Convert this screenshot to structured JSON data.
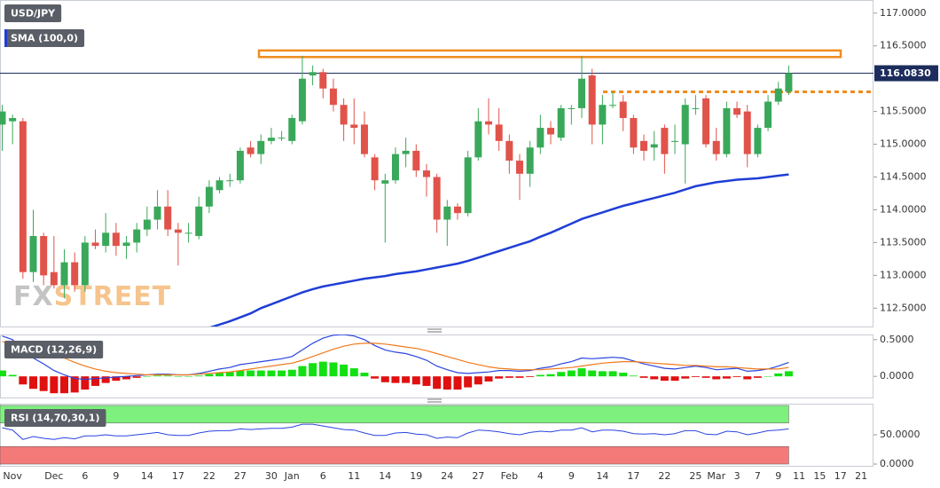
{
  "chart_data": [
    {
      "type": "candlestick",
      "symbol": "USD/JPY",
      "categories": [
        null,
        "Nov",
        null,
        null,
        null,
        "Dec",
        null,
        null,
        "6",
        null,
        null,
        "9",
        null,
        null,
        "14",
        null,
        null,
        "17",
        null,
        null,
        "22",
        null,
        null,
        "27",
        null,
        null,
        "30",
        null,
        "Jan",
        null,
        null,
        "6",
        null,
        null,
        "11",
        null,
        null,
        "14",
        null,
        null,
        "19",
        null,
        null,
        "24",
        null,
        null,
        "27",
        null,
        null,
        "Feb",
        null,
        null,
        "4",
        null,
        null,
        "9",
        null,
        null,
        "14",
        null,
        null,
        "17",
        null,
        null,
        "22",
        null,
        null,
        "25",
        null,
        "Mar",
        null,
        "3",
        null,
        "7",
        null,
        "9",
        null,
        "11",
        null,
        "15",
        null,
        "17",
        null,
        "21"
      ],
      "open": [
        115.3,
        115.35,
        115.35,
        113.05,
        113.6,
        113.05,
        112.85,
        113.2,
        112.85,
        113.5,
        113.45,
        113.65,
        113.45,
        113.5,
        113.7,
        113.85,
        114.05,
        113.7,
        113.65,
        113.6,
        114.05,
        114.3,
        114.45,
        114.45,
        114.95,
        114.85,
        115.05,
        115.1,
        115.05,
        115.35,
        116.05,
        116.1,
        115.85,
        115.6,
        115.3,
        115.3,
        114.8,
        114.4,
        114.45,
        114.85,
        114.9,
        114.6,
        114.5,
        113.85,
        114.05,
        113.95,
        114.8,
        115.35,
        115.3,
        115.05,
        114.75,
        114.55,
        114.95,
        115.25,
        115.1,
        115.55,
        115.55,
        116.05,
        115.3,
        115.6,
        115.65,
        115.4,
        115.05,
        114.95,
        115.25,
        115.05,
        115.0,
        115.55,
        115.7,
        115.05,
        114.85,
        115.55,
        115.5,
        114.85,
        115.25,
        115.65,
        115.8,
        null,
        null,
        null,
        null,
        null,
        null,
        null
      ],
      "high": [
        115.6,
        115.45,
        115.4,
        114.0,
        113.65,
        113.6,
        113.4,
        113.35,
        113.6,
        113.7,
        113.95,
        113.8,
        113.6,
        113.8,
        114.05,
        114.3,
        114.3,
        113.8,
        113.8,
        114.2,
        114.45,
        114.5,
        114.55,
        114.95,
        115.05,
        115.15,
        115.25,
        115.2,
        115.45,
        116.35,
        116.2,
        116.15,
        116.0,
        115.7,
        115.7,
        115.5,
        114.85,
        114.55,
        114.95,
        115.1,
        115.0,
        114.7,
        114.55,
        114.15,
        114.1,
        114.9,
        115.55,
        115.7,
        115.55,
        115.15,
        114.85,
        115.05,
        115.45,
        115.35,
        115.6,
        115.6,
        116.35,
        116.15,
        115.75,
        115.8,
        115.75,
        115.45,
        115.15,
        115.2,
        115.3,
        115.3,
        115.7,
        115.75,
        115.75,
        115.25,
        115.65,
        115.65,
        115.6,
        115.3,
        115.75,
        115.95,
        116.2,
        null,
        null,
        null,
        null,
        null,
        null,
        null
      ],
      "low": [
        114.9,
        115.0,
        112.95,
        112.9,
        112.85,
        112.8,
        112.65,
        112.75,
        112.75,
        113.4,
        113.35,
        113.3,
        113.25,
        113.35,
        113.6,
        113.7,
        113.6,
        113.15,
        113.5,
        113.55,
        113.95,
        114.25,
        114.35,
        114.4,
        114.8,
        114.7,
        115.0,
        115.05,
        115.0,
        115.3,
        115.9,
        115.7,
        115.5,
        115.05,
        115.0,
        114.8,
        114.3,
        113.5,
        114.4,
        114.65,
        114.5,
        114.2,
        113.65,
        113.45,
        113.85,
        113.9,
        114.75,
        115.15,
        114.9,
        114.55,
        114.15,
        114.35,
        114.85,
        115.0,
        115.05,
        115.3,
        115.4,
        115.0,
        115.0,
        115.55,
        115.2,
        114.85,
        114.75,
        114.75,
        114.55,
        114.85,
        114.4,
        115.45,
        114.95,
        114.75,
        114.8,
        115.4,
        114.65,
        114.8,
        115.2,
        115.6,
        115.75,
        null,
        null,
        null,
        null,
        null,
        null,
        null
      ],
      "close": [
        115.5,
        115.4,
        113.05,
        113.6,
        113.0,
        112.85,
        113.2,
        112.85,
        113.5,
        113.45,
        113.65,
        113.45,
        113.5,
        113.7,
        113.85,
        114.05,
        113.7,
        113.65,
        113.65,
        114.05,
        114.35,
        114.45,
        114.45,
        114.9,
        114.85,
        115.05,
        115.1,
        115.1,
        115.4,
        116.0,
        116.1,
        115.85,
        115.6,
        115.3,
        115.25,
        114.85,
        114.45,
        114.45,
        114.85,
        114.9,
        114.6,
        114.5,
        113.85,
        114.05,
        113.95,
        114.8,
        115.35,
        115.3,
        115.05,
        114.75,
        114.55,
        114.95,
        115.25,
        115.15,
        115.55,
        115.55,
        116.0,
        115.3,
        115.6,
        115.6,
        115.4,
        114.95,
        114.9,
        115.0,
        114.85,
        115.05,
        115.6,
        115.55,
        115.0,
        114.85,
        115.55,
        115.45,
        114.85,
        115.25,
        115.65,
        115.85,
        116.083,
        null,
        null,
        null,
        null,
        null,
        null,
        null
      ],
      "up_color": "#3aa85a",
      "down_color": "#e0534a",
      "series": [
        {
          "name": "SMA (100,0)",
          "color": "#1f3ed6",
          "values": [
            null,
            null,
            null,
            null,
            null,
            null,
            null,
            null,
            null,
            null,
            null,
            null,
            null,
            null,
            null,
            null,
            null,
            null,
            null,
            null,
            112.2,
            112.25,
            112.3,
            112.36,
            112.42,
            112.5,
            112.56,
            112.62,
            112.68,
            112.74,
            112.79,
            112.83,
            112.86,
            112.89,
            112.92,
            112.95,
            112.97,
            112.99,
            113.02,
            113.04,
            113.06,
            113.09,
            113.12,
            113.15,
            113.18,
            113.22,
            113.27,
            113.32,
            113.37,
            113.42,
            113.47,
            113.52,
            113.59,
            113.65,
            113.72,
            113.79,
            113.86,
            113.91,
            113.96,
            114.01,
            114.06,
            114.1,
            114.14,
            114.18,
            114.22,
            114.26,
            114.31,
            114.36,
            114.39,
            114.42,
            114.44,
            114.46,
            114.47,
            114.48,
            114.5,
            114.52,
            114.54,
            null,
            null,
            null,
            null,
            null,
            null,
            null
          ]
        }
      ],
      "last": {
        "value": 116.083,
        "label": "116.0830"
      },
      "resistance_zone": [
        116.33,
        116.43
      ],
      "support_level": 115.8,
      "level_color": "#f08c1e",
      "watermark": [
        "FX",
        "STREET"
      ],
      "ylim": [
        112.22,
        117.2
      ],
      "yticks": [
        {
          "value": 117,
          "label": "117.0000"
        },
        {
          "value": 116.5,
          "label": "116.5000"
        },
        {
          "value": 115.5,
          "label": "115.5000"
        },
        {
          "value": 115,
          "label": "115.0000"
        },
        {
          "value": 114.5,
          "label": "114.5000"
        },
        {
          "value": 114,
          "label": "114.0000"
        },
        {
          "value": 113.5,
          "label": "113.5000"
        },
        {
          "value": 113,
          "label": "113.0000"
        },
        {
          "value": 112.5,
          "label": "112.5000"
        }
      ]
    },
    {
      "type": "macd",
      "title": "MACD (12,26,9)",
      "series": [
        {
          "color": "#2a44e0",
          "values": [
            0.55,
            0.5,
            0.35,
            0.25,
            0.17,
            0.08,
            0.02,
            -0.03,
            -0.04,
            -0.03,
            -0.02,
            -0.01,
            0.0,
            0.01,
            0.02,
            0.03,
            0.03,
            0.02,
            0.02,
            0.04,
            0.07,
            0.1,
            0.12,
            0.16,
            0.18,
            0.2,
            0.22,
            0.24,
            0.27,
            0.36,
            0.45,
            0.52,
            0.56,
            0.57,
            0.55,
            0.5,
            0.42,
            0.36,
            0.33,
            0.31,
            0.27,
            0.22,
            0.14,
            0.09,
            0.05,
            0.04,
            0.05,
            0.06,
            0.08,
            0.08,
            0.07,
            0.08,
            0.11,
            0.13,
            0.17,
            0.2,
            0.25,
            0.24,
            0.25,
            0.26,
            0.25,
            0.21,
            0.17,
            0.14,
            0.11,
            0.1,
            0.12,
            0.14,
            0.12,
            0.09,
            0.1,
            0.11,
            0.07,
            0.08,
            0.1,
            0.14,
            0.19,
            null,
            null,
            null,
            null,
            null,
            null,
            null
          ]
        },
        {
          "color": "#f07a1a",
          "values": [
            0.47,
            0.48,
            0.46,
            0.42,
            0.37,
            0.31,
            0.25,
            0.19,
            0.14,
            0.1,
            0.07,
            0.05,
            0.04,
            0.03,
            0.02,
            0.02,
            0.02,
            0.02,
            0.02,
            0.03,
            0.04,
            0.05,
            0.06,
            0.08,
            0.1,
            0.12,
            0.14,
            0.16,
            0.18,
            0.22,
            0.27,
            0.32,
            0.37,
            0.41,
            0.44,
            0.45,
            0.45,
            0.44,
            0.42,
            0.4,
            0.38,
            0.35,
            0.31,
            0.27,
            0.23,
            0.19,
            0.16,
            0.13,
            0.11,
            0.1,
            0.09,
            0.09,
            0.09,
            0.1,
            0.11,
            0.12,
            0.14,
            0.16,
            0.18,
            0.19,
            0.2,
            0.2,
            0.19,
            0.18,
            0.17,
            0.16,
            0.15,
            0.15,
            0.14,
            0.13,
            0.13,
            0.12,
            0.11,
            0.1,
            0.1,
            0.1,
            0.12,
            null,
            null,
            null,
            null,
            null,
            null,
            null
          ]
        }
      ],
      "histogram": [
        0.08,
        0.02,
        -0.11,
        -0.17,
        -0.2,
        -0.23,
        -0.23,
        -0.22,
        -0.18,
        -0.13,
        -0.09,
        -0.06,
        -0.04,
        -0.02,
        0.0,
        0.01,
        0.01,
        0.0,
        0.0,
        0.01,
        0.03,
        0.05,
        0.06,
        0.08,
        0.08,
        0.08,
        0.08,
        0.08,
        0.09,
        0.14,
        0.18,
        0.2,
        0.19,
        0.16,
        0.11,
        0.05,
        -0.03,
        -0.08,
        -0.09,
        -0.09,
        -0.11,
        -0.13,
        -0.17,
        -0.18,
        -0.18,
        -0.15,
        -0.11,
        -0.07,
        -0.03,
        -0.02,
        -0.02,
        -0.01,
        0.02,
        0.03,
        0.06,
        0.08,
        0.11,
        0.08,
        0.07,
        0.07,
        0.05,
        0.01,
        -0.02,
        -0.04,
        -0.06,
        -0.06,
        -0.03,
        -0.01,
        -0.02,
        -0.04,
        -0.03,
        -0.01,
        -0.04,
        -0.02,
        0.0,
        0.04,
        0.07,
        null,
        null,
        null,
        null,
        null,
        null,
        null
      ],
      "positive_color": "#12e012",
      "negative_color": "#e01010",
      "ylim": [
        -0.3,
        0.57
      ],
      "yticks": [
        {
          "value": 0.5,
          "label": "0.5000"
        },
        {
          "value": 0,
          "label": "0.0000"
        }
      ]
    },
    {
      "type": "rsi",
      "title": "RSI (14,70,30,1)",
      "series": [
        {
          "color": "#2a44e0",
          "values": [
            62,
            58,
            42,
            47,
            44,
            42,
            45,
            43,
            48,
            48,
            50,
            48,
            48,
            50,
            52,
            54,
            50,
            49,
            49,
            53,
            56,
            57,
            57,
            60,
            59,
            60,
            61,
            61,
            63,
            68,
            68,
            65,
            62,
            59,
            58,
            53,
            49,
            49,
            53,
            54,
            51,
            50,
            44,
            46,
            45,
            53,
            58,
            57,
            55,
            52,
            50,
            54,
            56,
            55,
            58,
            58,
            62,
            55,
            58,
            58,
            56,
            52,
            51,
            52,
            50,
            52,
            57,
            57,
            51,
            50,
            56,
            55,
            50,
            53,
            57,
            58,
            60,
            null,
            null,
            null,
            null,
            null,
            null,
            null
          ]
        }
      ],
      "upper_band": [
        70,
        100
      ],
      "lower_band": [
        0,
        30
      ],
      "upper_color": "#7ef07e",
      "lower_color": "#f47a7a",
      "ylim": [
        -3,
        103
      ],
      "yticks": [
        {
          "value": 50,
          "label": "50.0000"
        },
        {
          "value": 0,
          "label": "0.0000"
        }
      ]
    }
  ]
}
